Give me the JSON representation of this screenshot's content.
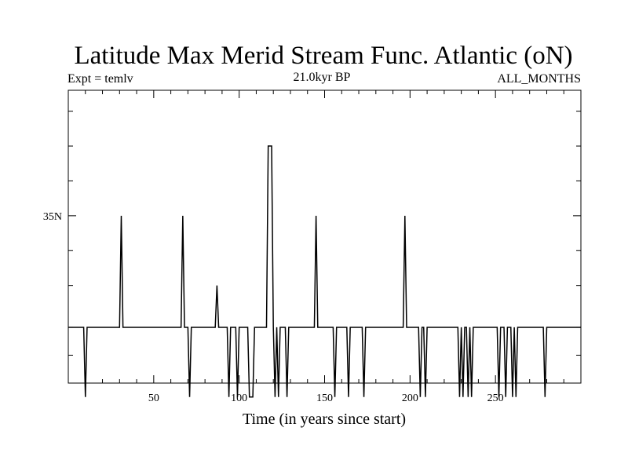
{
  "chart_data": {
    "type": "line",
    "title": "Latitude Max Merid Stream Func. Atlantic (oN)",
    "subtitle_left": "Expt = temlv",
    "subtitle_center": "21.0kyr BP",
    "subtitle_right": "ALL_MONTHS",
    "xlabel": "Time (in years since start)",
    "ylabel": "",
    "xlim": [
      0,
      300
    ],
    "ylim": [
      23,
      44
    ],
    "x_ticks_labeled": [
      50,
      100,
      150,
      200,
      250
    ],
    "x_tick_labels": [
      "50",
      "100",
      "150",
      "200",
      "250"
    ],
    "y_ticks_labeled": [
      35
    ],
    "y_tick_labels": [
      "35N"
    ],
    "y_ticks_minor": [
      25,
      27,
      30,
      32.5,
      35,
      37.5,
      40,
      42.5
    ],
    "grid": false,
    "series": [
      {
        "name": "",
        "color": "#000000",
        "baseline": 27,
        "points": [
          [
            0,
            27
          ],
          [
            9,
            27
          ],
          [
            10,
            22
          ],
          [
            11,
            27
          ],
          [
            30,
            27
          ],
          [
            31,
            35
          ],
          [
            32,
            27
          ],
          [
            66,
            27
          ],
          [
            67,
            35
          ],
          [
            68,
            27
          ],
          [
            70,
            27
          ],
          [
            71,
            22
          ],
          [
            72,
            27
          ],
          [
            86,
            27
          ],
          [
            87,
            30
          ],
          [
            88,
            27
          ],
          [
            93,
            27
          ],
          [
            94,
            22
          ],
          [
            95,
            27
          ],
          [
            98,
            27
          ],
          [
            99,
            22
          ],
          [
            100,
            27
          ],
          [
            105,
            27
          ],
          [
            106,
            22
          ],
          [
            108,
            22
          ],
          [
            109,
            27
          ],
          [
            116,
            27
          ],
          [
            117,
            40
          ],
          [
            119,
            40
          ],
          [
            120,
            27
          ],
          [
            121,
            22
          ],
          [
            122,
            27
          ],
          [
            123,
            22
          ],
          [
            124,
            27
          ],
          [
            127,
            27
          ],
          [
            128,
            22
          ],
          [
            129,
            27
          ],
          [
            144,
            27
          ],
          [
            145,
            35
          ],
          [
            146,
            27
          ],
          [
            155,
            27
          ],
          [
            156,
            22
          ],
          [
            157,
            27
          ],
          [
            163,
            27
          ],
          [
            164,
            22
          ],
          [
            165,
            27
          ],
          [
            172,
            27
          ],
          [
            173,
            22
          ],
          [
            174,
            27
          ],
          [
            196,
            27
          ],
          [
            197,
            35
          ],
          [
            198,
            27
          ],
          [
            205,
            27
          ],
          [
            206,
            22
          ],
          [
            207,
            27
          ],
          [
            208,
            27
          ],
          [
            209,
            22
          ],
          [
            210,
            27
          ],
          [
            228,
            27
          ],
          [
            229,
            22
          ],
          [
            230,
            27
          ],
          [
            231,
            22
          ],
          [
            232,
            27
          ],
          [
            233,
            27
          ],
          [
            234,
            22
          ],
          [
            235,
            27
          ],
          [
            236,
            22
          ],
          [
            237,
            27
          ],
          [
            251,
            27
          ],
          [
            252,
            22
          ],
          [
            253,
            27
          ],
          [
            255,
            27
          ],
          [
            256,
            22
          ],
          [
            257,
            27
          ],
          [
            259,
            27
          ],
          [
            260,
            22
          ],
          [
            261,
            27
          ],
          [
            262,
            22
          ],
          [
            263,
            27
          ],
          [
            278,
            27
          ],
          [
            279,
            22
          ],
          [
            280,
            27
          ],
          [
            300,
            27
          ]
        ]
      }
    ]
  }
}
